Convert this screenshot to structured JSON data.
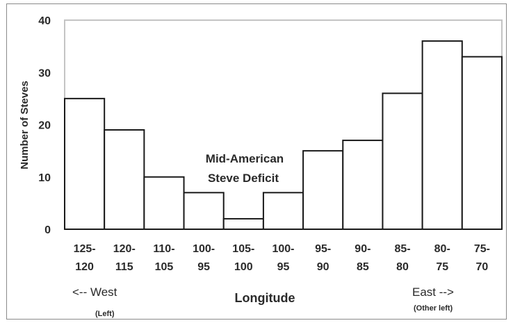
{
  "chart_data": {
    "type": "bar",
    "categories": [
      [
        "125-",
        "120"
      ],
      [
        "120-",
        "115"
      ],
      [
        "110-",
        "105"
      ],
      [
        "100-",
        "95"
      ],
      [
        "105-",
        "100"
      ],
      [
        "100-",
        "95"
      ],
      [
        "95-",
        "90"
      ],
      [
        "90-",
        "85"
      ],
      [
        "85-",
        "80"
      ],
      [
        "80-",
        "75"
      ],
      [
        "75-",
        "70"
      ]
    ],
    "values": [
      25,
      19,
      10,
      7,
      2,
      7,
      15,
      17,
      26,
      36,
      33
    ],
    "ylabel": "Number of Steves",
    "xlabel": "Longitude",
    "ylim": [
      0,
      40
    ],
    "yticks": [
      0,
      10,
      20,
      30,
      40
    ],
    "grid": false,
    "bar_fill": "#ffffff",
    "bar_stroke": "#1a1a1a",
    "annotation": [
      "Mid-American",
      "Steve Deficit"
    ],
    "left_note": {
      "label": "<-- West",
      "sub": "(Left)"
    },
    "right_note": {
      "label": "East -->",
      "sub": "(Other left)"
    }
  }
}
